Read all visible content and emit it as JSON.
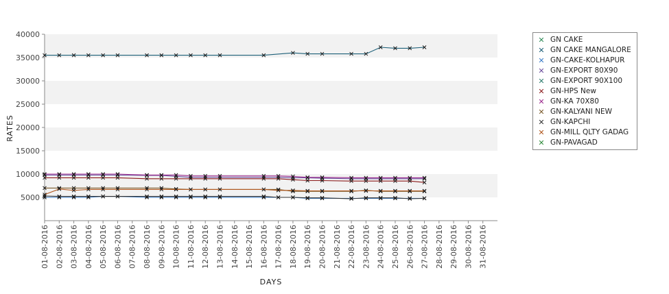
{
  "chart_data": {
    "type": "line",
    "title": "",
    "xlabel": "DAYS",
    "ylabel": "RATES",
    "ylim": [
      0,
      40000
    ],
    "yticks": [
      5000,
      10000,
      15000,
      20000,
      25000,
      30000,
      35000,
      40000
    ],
    "ytick_labels": [
      "5000",
      "10000",
      "15000",
      "20000",
      "25000",
      "30000",
      "35000",
      "40000"
    ],
    "categories": [
      "01-08-2016",
      "02-08-2016",
      "03-08-2016",
      "04-08-2016",
      "05-08-2016",
      "06-08-2016",
      "07-08-2016",
      "08-08-2016",
      "09-08-2016",
      "10-08-2016",
      "11-08-2016",
      "12-08-2016",
      "13-08-2016",
      "14-08-2016",
      "15-08-2016",
      "16-08-2016",
      "17-08-2016",
      "18-08-2016",
      "19-08-2016",
      "20-08-2016",
      "21-08-2016",
      "22-08-2016",
      "23-08-2016",
      "24-08-2016",
      "25-08-2016",
      "26-08-2016",
      "27-08-2016",
      "28-08-2016",
      "29-08-2016",
      "30-08-2016",
      "31-08-2016"
    ],
    "grid": "alternating horizontal bands",
    "legend_position": "right",
    "series": [
      {
        "name": "GN CAKE",
        "color": "#2e8b57",
        "values": [
          null,
          null,
          null,
          null,
          null,
          null,
          null,
          null,
          null,
          null,
          null,
          null,
          null,
          null,
          null,
          null,
          null,
          null,
          null,
          null,
          null,
          null,
          null,
          null,
          null,
          null,
          null,
          null,
          null,
          null,
          null
        ]
      },
      {
        "name": "GN CAKE MANGALORE",
        "color": "#1c5f78",
        "values": [
          35500,
          35500,
          35500,
          35500,
          35500,
          35500,
          null,
          35500,
          35500,
          35500,
          35500,
          35500,
          35500,
          null,
          null,
          35500,
          null,
          36000,
          35800,
          35800,
          null,
          35800,
          35800,
          37200,
          37000,
          37000,
          37200,
          null,
          null,
          null,
          null
        ]
      },
      {
        "name": "GN-CAKE-KOLHAPUR",
        "color": "#3a7cc8",
        "values": [
          5000,
          5000,
          5000,
          5000,
          5200,
          5200,
          null,
          5000,
          5000,
          5000,
          5000,
          5000,
          5000,
          null,
          null,
          5000,
          5000,
          5000,
          4800,
          4800,
          null,
          4800,
          4800,
          4800,
          4800,
          4800,
          4800,
          null,
          null,
          null,
          null
        ]
      },
      {
        "name": "GN-EXPORT 80X90",
        "color": "#6a4c9c",
        "values": [
          9800,
          9800,
          9800,
          9800,
          9800,
          9800,
          null,
          9700,
          9700,
          9500,
          9300,
          9300,
          9300,
          null,
          null,
          9300,
          9300,
          9200,
          9200,
          9100,
          null,
          9000,
          9000,
          9000,
          9000,
          9000,
          9000,
          null,
          null,
          null,
          null
        ]
      },
      {
        "name": "GN-EXPORT 90X100",
        "color": "#2e7d6e",
        "values": [
          null,
          null,
          null,
          null,
          null,
          null,
          null,
          null,
          null,
          null,
          null,
          null,
          null,
          null,
          null,
          null,
          null,
          null,
          null,
          null,
          null,
          null,
          null,
          null,
          null,
          null,
          null,
          null,
          null,
          null,
          null
        ]
      },
      {
        "name": "GN-HPS New",
        "color": "#8b1a1a",
        "values": [
          9200,
          9200,
          9200,
          9200,
          9200,
          9200,
          null,
          9000,
          9000,
          9000,
          9000,
          9000,
          9000,
          null,
          null,
          9000,
          9000,
          8800,
          8600,
          8600,
          null,
          8500,
          8500,
          8500,
          8500,
          8500,
          8200,
          null,
          null,
          null,
          null
        ]
      },
      {
        "name": "GN-KA 70X80",
        "color": "#9c2a8e",
        "values": [
          10000,
          10000,
          10000,
          10000,
          10000,
          10000,
          null,
          9800,
          9800,
          9800,
          9600,
          9600,
          9600,
          null,
          null,
          9600,
          9600,
          9500,
          9300,
          9300,
          null,
          9200,
          9200,
          9200,
          9200,
          9200,
          9200,
          null,
          null,
          null,
          null
        ]
      },
      {
        "name": "GN-KALYANI NEW",
        "color": "#7a5a2a",
        "values": [
          7000,
          7000,
          7000,
          7000,
          7000,
          7000,
          null,
          7000,
          7000,
          6800,
          6700,
          6700,
          6700,
          null,
          null,
          6700,
          6700,
          6300,
          6300,
          6300,
          null,
          6300,
          6500,
          6300,
          6300,
          6300,
          6300,
          null,
          null,
          null,
          null
        ]
      },
      {
        "name": "GN-KAPCHI",
        "color": "#333333",
        "values": [
          5300,
          5200,
          5200,
          5200,
          5200,
          5200,
          null,
          5200,
          5200,
          5200,
          5200,
          5200,
          5200,
          null,
          null,
          5200,
          5000,
          5000,
          4900,
          4900,
          null,
          4700,
          4900,
          4900,
          4900,
          4700,
          4800,
          null,
          null,
          null,
          null
        ]
      },
      {
        "name": "GN-MILL QLTY GADAG",
        "color": "#b0561c",
        "values": [
          5600,
          6800,
          6500,
          6700,
          6700,
          6700,
          null,
          6700,
          6700,
          6700,
          6700,
          6700,
          6700,
          null,
          null,
          6700,
          6500,
          6500,
          6400,
          6400,
          null,
          6400,
          6400,
          6400,
          6400,
          6400,
          6400,
          null,
          null,
          null,
          null
        ]
      },
      {
        "name": "GN-PAVAGAD",
        "color": "#2e8b3a",
        "values": [
          null,
          null,
          null,
          null,
          null,
          null,
          null,
          null,
          null,
          null,
          null,
          null,
          null,
          null,
          null,
          null,
          null,
          null,
          null,
          null,
          null,
          null,
          null,
          null,
          null,
          null,
          null,
          null,
          null,
          null,
          null
        ]
      }
    ]
  }
}
